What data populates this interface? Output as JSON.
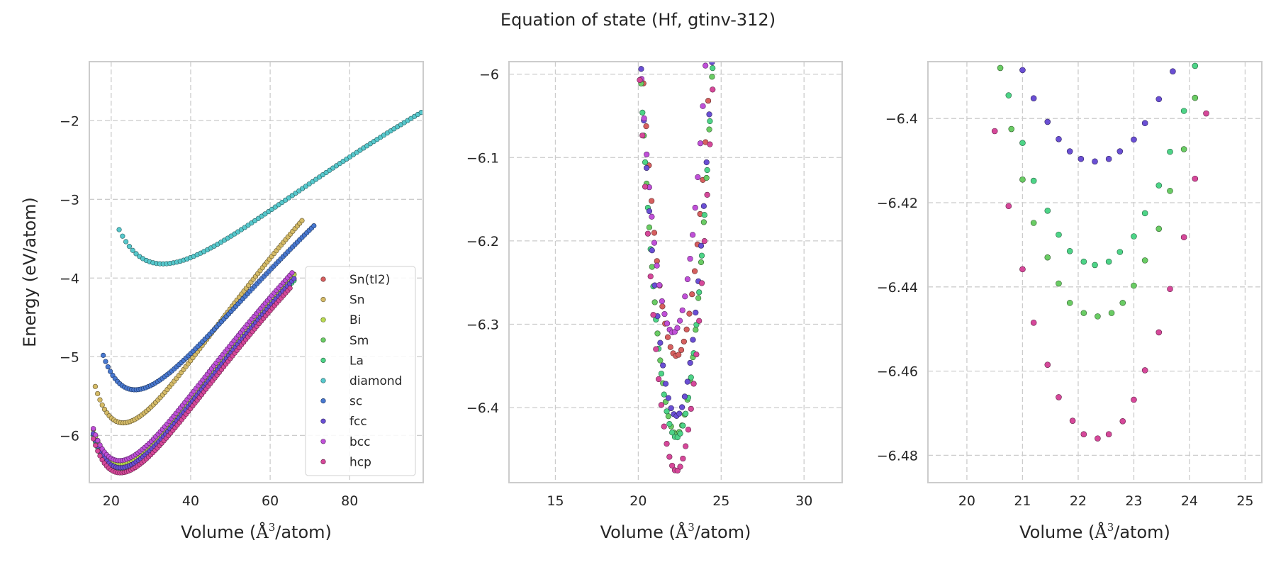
{
  "title": "Equation of state (Hf, gtinv-312)",
  "chart_data": [
    {
      "type": "scatter",
      "ylabel": "Energy (eV/atom)",
      "xlabel_parts": [
        "Volume (",
        "Å",
        "3",
        "/atom)"
      ],
      "xlim": [
        14.5,
        98.5
      ],
      "ylim": [
        -6.6,
        -1.25
      ],
      "xticks": [
        20,
        40,
        60,
        80
      ],
      "yticks": [
        -6,
        -5,
        -4,
        -3,
        -2
      ],
      "grid": true,
      "legend_position": "lower-right",
      "series": [
        {
          "name": "Sn(tI2)",
          "color": "#d65f5f",
          "curve": {
            "e0": -6.355,
            "v0": 22.3,
            "b": 0.26,
            "vmin": 15.5,
            "vmax": 66.0
          }
        },
        {
          "name": "Sn",
          "color": "#d5bb67",
          "curve": {
            "e0": -5.84,
            "v0": 23.0,
            "b": 0.27,
            "vmin": 16.0,
            "vmax": 68.0
          }
        },
        {
          "name": "Bi",
          "color": "#b8d94f",
          "curve": {
            "e0": -6.36,
            "v0": 22.3,
            "b": 0.26,
            "vmin": 15.5,
            "vmax": 66.0
          }
        },
        {
          "name": "Sm",
          "color": "#6acc64",
          "curve": {
            "e0": -6.43,
            "v0": 22.3,
            "b": 0.26,
            "vmin": 15.5,
            "vmax": 66.0
          }
        },
        {
          "name": "La",
          "color": "#4dd487",
          "curve": {
            "e0": -6.435,
            "v0": 22.3,
            "b": 0.26,
            "vmin": 15.5,
            "vmax": 66.0
          }
        },
        {
          "name": "diamond",
          "color": "#56c8cc",
          "curve": {
            "e0": -3.82,
            "v0": 33.0,
            "b": 0.14,
            "vmin": 22.0,
            "vmax": 98.0
          }
        },
        {
          "name": "sc",
          "color": "#4878d0",
          "curve": {
            "e0": -5.42,
            "v0": 26.0,
            "b": 0.22,
            "vmin": 18.0,
            "vmax": 71.0
          }
        },
        {
          "name": "fcc",
          "color": "#6a4fd4",
          "curve": {
            "e0": -6.41,
            "v0": 22.3,
            "b": 0.26,
            "vmin": 15.5,
            "vmax": 66.0
          }
        },
        {
          "name": "bcc",
          "color": "#c050d8",
          "curve": {
            "e0": -6.32,
            "v0": 22.1,
            "b": 0.26,
            "vmin": 15.5,
            "vmax": 65.5
          }
        },
        {
          "name": "hcp",
          "color": "#d6489a",
          "curve": {
            "e0": -6.475,
            "v0": 22.3,
            "b": 0.26,
            "vmin": 15.5,
            "vmax": 65.0
          }
        }
      ]
    },
    {
      "type": "scatter",
      "xlabel_parts": [
        "Volume (",
        "Å",
        "3",
        "/atom)"
      ],
      "xlim": [
        12.2,
        32.3
      ],
      "ylim": [
        -6.49,
        -5.985
      ],
      "xticks": [
        15,
        20,
        25,
        30
      ],
      "yticks": [
        -6.4,
        -6.3,
        -6.2,
        -6.1,
        -6.0
      ],
      "grid": true,
      "series": [
        {
          "name": "Sn(tI2)",
          "color": "#d65f5f",
          "curve": {
            "e0": -6.338,
            "v0": 22.3,
            "k": 0.083,
            "vmin": 18.2,
            "vmax": 27.8
          }
        },
        {
          "name": "Sm",
          "color": "#6acc64",
          "curve": {
            "e0": -6.432,
            "v0": 22.3,
            "k": 0.093,
            "vmin": 18.2,
            "vmax": 27.9
          }
        },
        {
          "name": "La",
          "color": "#4dd487",
          "curve": {
            "e0": -6.436,
            "v0": 22.3,
            "k": 0.093,
            "vmin": 18.3,
            "vmax": 27.9
          }
        },
        {
          "name": "fcc",
          "color": "#6a4fd4",
          "curve": {
            "e0": -6.41,
            "v0": 22.3,
            "k": 0.092,
            "vmin": 18.2,
            "vmax": 27.9
          }
        },
        {
          "name": "bcc",
          "color": "#c050d8",
          "curve": {
            "e0": -6.31,
            "v0": 22.1,
            "k": 0.084,
            "vmin": 18.5,
            "vmax": 27.6
          }
        },
        {
          "name": "hcp",
          "color": "#d6489a",
          "curve": {
            "e0": -6.476,
            "v0": 22.3,
            "k": 0.096,
            "vmin": 18.3,
            "vmax": 27.9
          }
        }
      ]
    },
    {
      "type": "scatter",
      "xlabel_parts": [
        "Volume (",
        "Å",
        "3",
        "/atom)"
      ],
      "xlim": [
        19.3,
        25.3
      ],
      "ylim": [
        -6.4865,
        -6.3865
      ],
      "xticks": [
        20,
        21,
        22,
        23,
        24,
        25
      ],
      "yticks": [
        -6.48,
        -6.46,
        -6.44,
        -6.42,
        -6.4
      ],
      "grid": true,
      "series": [
        {
          "name": "Sm",
          "color": "#6acc64",
          "points": [
            [
              20.6,
              -6.388
            ],
            [
              20.8,
              -6.4025
            ],
            [
              21.0,
              -6.4145
            ],
            [
              21.2,
              -6.4248
            ],
            [
              21.45,
              -6.433
            ],
            [
              21.65,
              -6.4392
            ],
            [
              21.85,
              -6.4438
            ],
            [
              22.1,
              -6.4462
            ],
            [
              22.35,
              -6.447
            ],
            [
              22.6,
              -6.4462
            ],
            [
              22.8,
              -6.4438
            ],
            [
              23.0,
              -6.4397
            ],
            [
              23.2,
              -6.4337
            ],
            [
              23.45,
              -6.4262
            ],
            [
              23.65,
              -6.4172
            ],
            [
              23.9,
              -6.4073
            ],
            [
              24.1,
              -6.3951
            ]
          ]
        },
        {
          "name": "La",
          "color": "#4dd487",
          "points": [
            [
              20.75,
              -6.3945
            ],
            [
              21.0,
              -6.4058
            ],
            [
              21.2,
              -6.4148
            ],
            [
              21.45,
              -6.4219
            ],
            [
              21.65,
              -6.4276
            ],
            [
              21.85,
              -6.4315
            ],
            [
              22.1,
              -6.434
            ],
            [
              22.3,
              -6.4348
            ],
            [
              22.55,
              -6.434
            ],
            [
              22.75,
              -6.4317
            ],
            [
              23.0,
              -6.428
            ],
            [
              23.2,
              -6.4225
            ],
            [
              23.45,
              -6.4159
            ],
            [
              23.65,
              -6.4079
            ],
            [
              23.9,
              -6.3982
            ],
            [
              24.1,
              -6.3875
            ]
          ]
        },
        {
          "name": "fcc",
          "color": "#6a4fd4",
          "points": [
            [
              21.0,
              -6.3885
            ],
            [
              21.2,
              -6.3952
            ],
            [
              21.45,
              -6.4008
            ],
            [
              21.65,
              -6.4049
            ],
            [
              21.85,
              -6.4078
            ],
            [
              22.05,
              -6.4096
            ],
            [
              22.3,
              -6.4102
            ],
            [
              22.55,
              -6.4096
            ],
            [
              22.75,
              -6.4078
            ],
            [
              23.0,
              -6.405
            ],
            [
              23.2,
              -6.4011
            ],
            [
              23.45,
              -6.3954
            ],
            [
              23.7,
              -6.3888
            ]
          ]
        },
        {
          "name": "hcp",
          "color": "#d6489a",
          "points": [
            [
              20.5,
              -6.403
            ],
            [
              20.75,
              -6.4208
            ],
            [
              21.0,
              -6.4358
            ],
            [
              21.2,
              -6.4485
            ],
            [
              21.45,
              -6.4585
            ],
            [
              21.65,
              -6.4662
            ],
            [
              21.9,
              -6.4718
            ],
            [
              22.1,
              -6.475
            ],
            [
              22.35,
              -6.476
            ],
            [
              22.55,
              -6.475
            ],
            [
              22.8,
              -6.4719
            ],
            [
              23.0,
              -6.4668
            ],
            [
              23.2,
              -6.4598
            ],
            [
              23.45,
              -6.4508
            ],
            [
              23.65,
              -6.4405
            ],
            [
              23.9,
              -6.4282
            ],
            [
              24.1,
              -6.4143
            ],
            [
              24.3,
              -6.3988
            ]
          ]
        }
      ]
    }
  ]
}
